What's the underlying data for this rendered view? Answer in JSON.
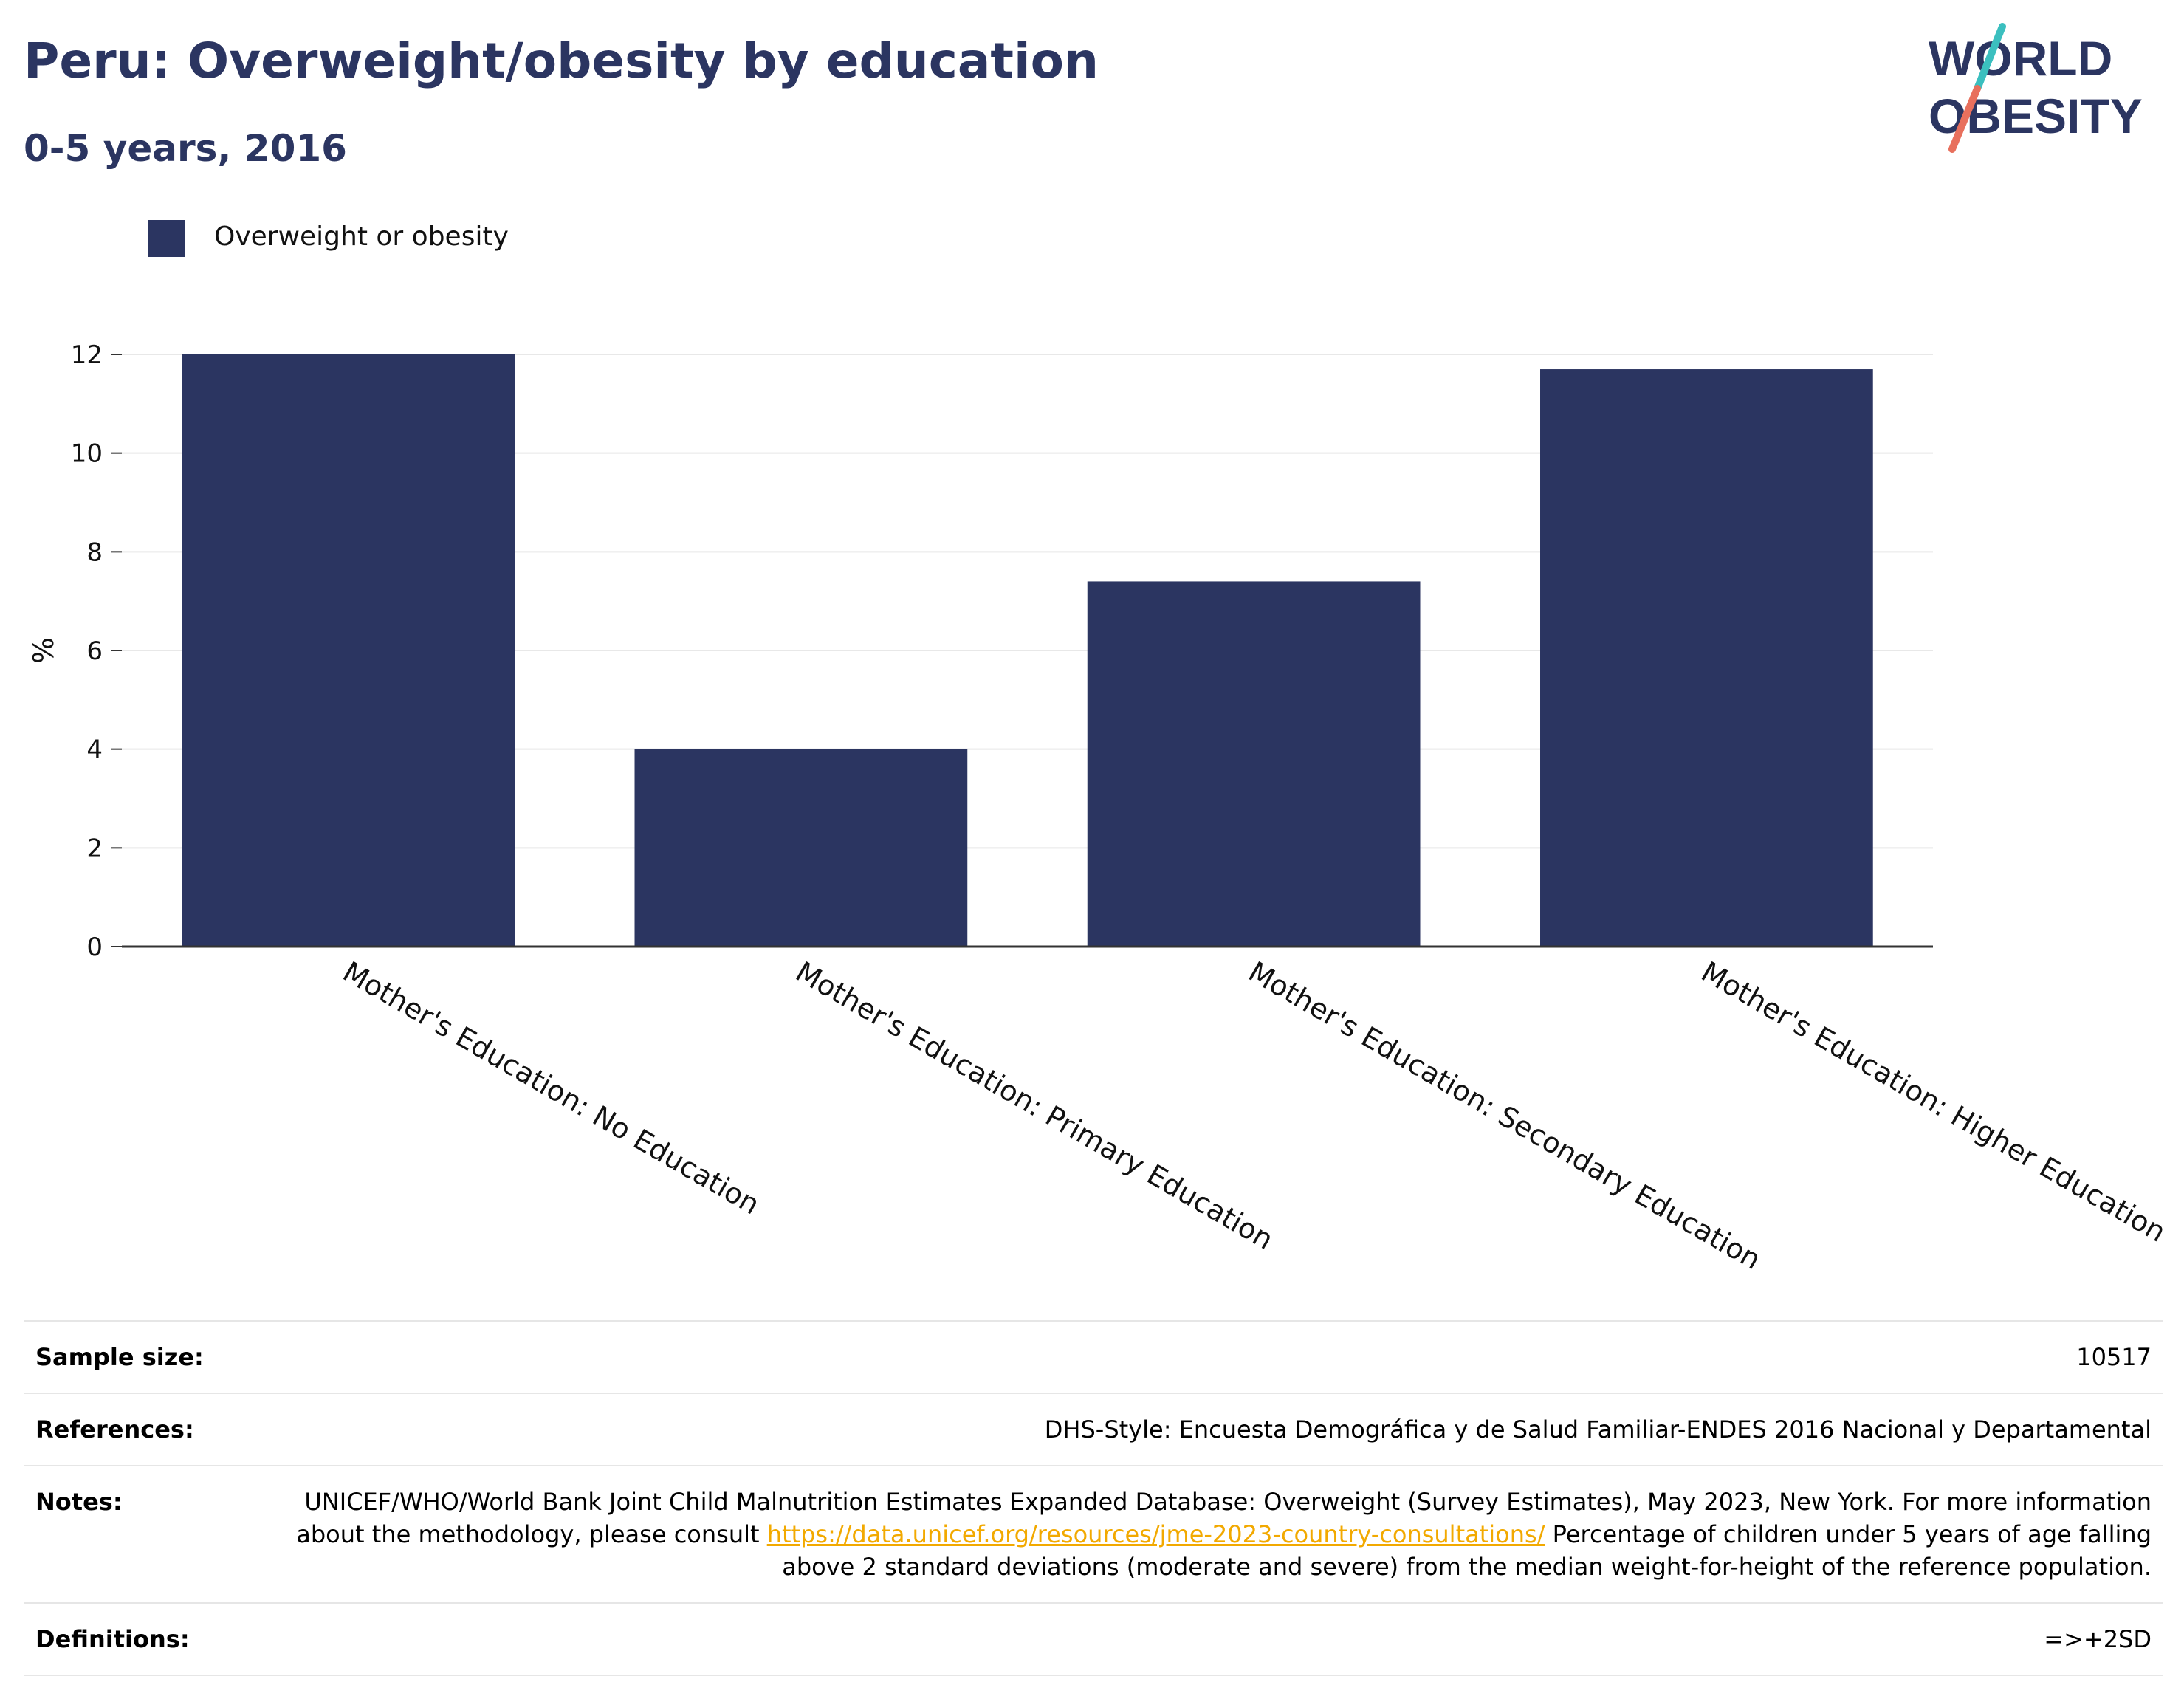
{
  "header": {
    "title": "Peru: Overweight/obesity by education",
    "subtitle": "0-5 years, 2016"
  },
  "logo": {
    "line1": "WORLD",
    "line2": "OBESITY",
    "colors": {
      "text": "#2b3561",
      "slash_top": "#3bbfbf",
      "slash_bottom": "#e8705d"
    }
  },
  "colors": {
    "bar": "#2b3561",
    "grid": "#e8e8e8",
    "axis": "#333333",
    "link": "#f2a900"
  },
  "chart_data": {
    "type": "bar",
    "categories": [
      "Mother's Education: No Education",
      "Mother's Education: Primary Education",
      "Mother's Education: Secondary Education",
      "Mother's Education: Higher Education"
    ],
    "series": [
      {
        "name": "Overweight or obesity",
        "values": [
          12.0,
          4.0,
          7.4,
          11.7
        ]
      }
    ],
    "ylabel": "%",
    "xlabel": "",
    "ylim": [
      0,
      12
    ],
    "yticks": [
      0,
      2,
      4,
      6,
      8,
      10,
      12
    ],
    "grid": true,
    "legend_position": "top-left"
  },
  "info": {
    "sample_size_label": "Sample size:",
    "sample_size": "10517",
    "references_label": "References:",
    "references": "DHS-Style: Encuesta Demográfica y de Salud Familiar-ENDES 2016 Nacional y Departamental",
    "notes_label": "Notes:",
    "notes_line1": "UNICEF/WHO/World Bank Joint Child Malnutrition Estimates Expanded Database: Overweight (Survey Estimates), May 2023, New York. For more information about the methodology, please consult",
    "notes_link": "https://data.unicef.org/resources/jme-2023-country-consultations/",
    "notes_line2": "Percentage of children under 5 years of age falling above 2 standard deviations (moderate and severe) from the median weight-for-height of the reference population.",
    "definitions_label": "Definitions:",
    "definitions": "=>+2SD"
  }
}
